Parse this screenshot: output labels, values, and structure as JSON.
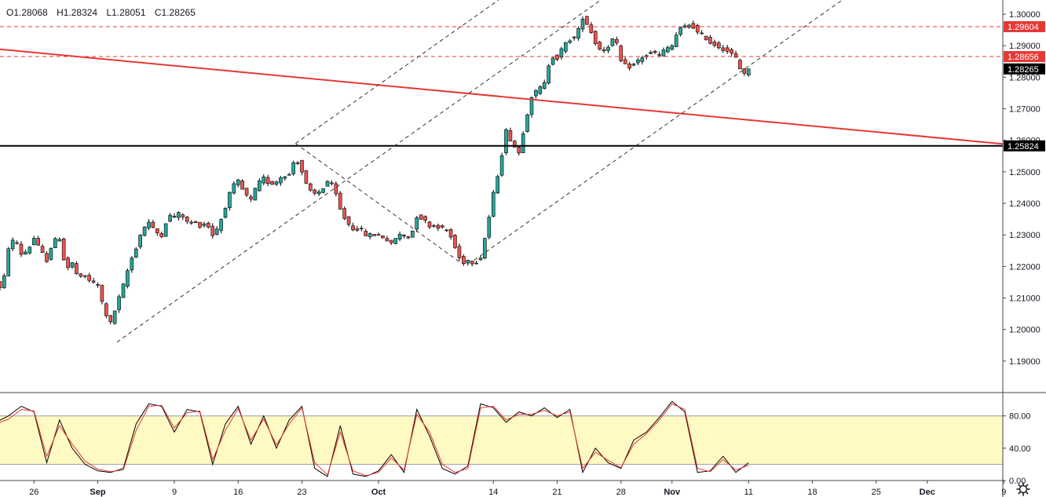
{
  "header": {
    "open": "O1.28068",
    "high": "H1.28324",
    "low": "L1.28051",
    "close": "C1.28265"
  },
  "colors": {
    "up": "#26a69a",
    "down": "#ef5350",
    "candle_border": "#000000",
    "trendline": "#e53935",
    "resistance": "#e53935",
    "support": "#000000",
    "channel": "#333333",
    "stoch_band": "#fff9c4",
    "stoch_k": "#000000",
    "stoch_d": "#e53935",
    "last_price_bg": "#000000"
  },
  "chart_data": [
    {
      "type": "candlestick",
      "title": "",
      "ylim": [
        1.18,
        1.3045
      ],
      "y_ticks": [
        "1.30000",
        "1.29000",
        "1.28000",
        "1.27000",
        "1.26000",
        "1.25000",
        "1.24000",
        "1.23000",
        "1.22000",
        "1.21000",
        "1.20000",
        "1.19000"
      ],
      "x_ticks": [
        {
          "label": "26",
          "t": -5
        },
        {
          "label": "Sep",
          "t": 0
        },
        {
          "label": "9",
          "t": 6
        },
        {
          "label": "16",
          "t": 11
        },
        {
          "label": "23",
          "t": 16
        },
        {
          "label": "Oct",
          "t": 22
        },
        {
          "label": "14",
          "t": 31
        },
        {
          "label": "21",
          "t": 36
        },
        {
          "label": "28",
          "t": 41
        },
        {
          "label": "Nov",
          "t": 45
        },
        {
          "label": "11",
          "t": 51
        },
        {
          "label": "18",
          "t": 56
        },
        {
          "label": "25",
          "t": 61
        },
        {
          "label": "Dec",
          "t": 65
        },
        {
          "label": "9",
          "t": 71
        }
      ],
      "price_labels": [
        {
          "value": 1.29604,
          "text": "1.29604",
          "style": "red"
        },
        {
          "value": 1.28656,
          "text": "1.28656",
          "style": "red"
        },
        {
          "value": 1.28265,
          "text": "1.28265",
          "style": "black"
        },
        {
          "value": 1.25824,
          "text": "1.25824",
          "style": "black"
        }
      ],
      "path": [
        [
          -8.0,
          1.215
        ],
        [
          -7.5,
          1.212
        ],
        [
          -7.0,
          1.226
        ],
        [
          -6.5,
          1.229
        ],
        [
          -6.0,
          1.224
        ],
        [
          -5.5,
          1.225
        ],
        [
          -5.0,
          1.229
        ],
        [
          -4.5,
          1.225
        ],
        [
          -4.0,
          1.222
        ],
        [
          -3.5,
          1.228
        ],
        [
          -3.0,
          1.229
        ],
        [
          -2.5,
          1.219
        ],
        [
          -2.0,
          1.221
        ],
        [
          -1.5,
          1.216
        ],
        [
          -1.0,
          1.217
        ],
        [
          -0.5,
          1.215
        ],
        [
          0.0,
          1.214
        ],
        [
          0.5,
          1.206
        ],
        [
          1.0,
          1.202
        ],
        [
          1.5,
          1.208
        ],
        [
          2.0,
          1.214
        ],
        [
          2.5,
          1.221
        ],
        [
          3.0,
          1.226
        ],
        [
          3.5,
          1.232
        ],
        [
          4.0,
          1.234
        ],
        [
          4.5,
          1.231
        ],
        [
          5.0,
          1.23
        ],
        [
          5.5,
          1.236
        ],
        [
          6.0,
          1.236
        ],
        [
          6.5,
          1.237
        ],
        [
          7.0,
          1.234
        ],
        [
          7.5,
          1.234
        ],
        [
          8.0,
          1.233
        ],
        [
          8.5,
          1.234
        ],
        [
          9.0,
          1.23
        ],
        [
          9.5,
          1.233
        ],
        [
          10.0,
          1.239
        ],
        [
          10.5,
          1.245
        ],
        [
          11.0,
          1.247
        ],
        [
          11.5,
          1.243
        ],
        [
          12.0,
          1.241
        ],
        [
          12.5,
          1.246
        ],
        [
          13.0,
          1.248
        ],
        [
          13.5,
          1.246
        ],
        [
          14.0,
          1.247
        ],
        [
          14.5,
          1.249
        ],
        [
          15.0,
          1.249
        ],
        [
          15.5,
          1.255
        ],
        [
          16.0,
          1.25
        ],
        [
          16.5,
          1.244
        ],
        [
          17.0,
          1.243
        ],
        [
          17.5,
          1.244
        ],
        [
          18.0,
          1.247
        ],
        [
          18.5,
          1.245
        ],
        [
          19.0,
          1.238
        ],
        [
          19.5,
          1.234
        ],
        [
          20.0,
          1.232
        ],
        [
          20.5,
          1.232
        ],
        [
          21.0,
          1.23
        ],
        [
          21.5,
          1.23
        ],
        [
          22.0,
          1.23
        ],
        [
          22.5,
          1.229
        ],
        [
          23.0,
          1.227
        ],
        [
          23.5,
          1.23
        ],
        [
          24.0,
          1.23
        ],
        [
          24.5,
          1.229
        ],
        [
          25.0,
          1.236
        ],
        [
          25.5,
          1.235
        ],
        [
          26.0,
          1.233
        ],
        [
          26.5,
          1.233
        ],
        [
          27.0,
          1.232
        ],
        [
          27.5,
          1.231
        ],
        [
          28.0,
          1.226
        ],
        [
          28.5,
          1.221
        ],
        [
          29.0,
          1.222
        ],
        [
          29.5,
          1.221
        ],
        [
          30.0,
          1.223
        ],
        [
          30.5,
          1.232
        ],
        [
          31.0,
          1.243
        ],
        [
          31.5,
          1.252
        ],
        [
          32.0,
          1.263
        ],
        [
          32.5,
          1.259
        ],
        [
          33.0,
          1.256
        ],
        [
          33.5,
          1.266
        ],
        [
          34.0,
          1.274
        ],
        [
          34.5,
          1.276
        ],
        [
          35.0,
          1.278
        ],
        [
          35.5,
          1.287
        ],
        [
          36.0,
          1.286
        ],
        [
          36.5,
          1.29
        ],
        [
          37.0,
          1.292
        ],
        [
          37.5,
          1.293
        ],
        [
          38.0,
          1.299
        ],
        [
          38.5,
          1.296
        ],
        [
          39.0,
          1.291
        ],
        [
          39.5,
          1.288
        ],
        [
          40.0,
          1.29
        ],
        [
          40.5,
          1.293
        ],
        [
          41.0,
          1.285
        ],
        [
          41.5,
          1.283
        ],
        [
          42.0,
          1.284
        ],
        [
          42.5,
          1.286
        ],
        [
          43.0,
          1.287
        ],
        [
          43.5,
          1.288
        ],
        [
          44.0,
          1.287
        ],
        [
          44.5,
          1.289
        ],
        [
          45.0,
          1.29
        ],
        [
          45.5,
          1.295
        ],
        [
          46.0,
          1.296
        ],
        [
          46.5,
          1.297
        ],
        [
          47.0,
          1.294
        ],
        [
          47.5,
          1.293
        ],
        [
          48.0,
          1.291
        ],
        [
          48.5,
          1.29
        ],
        [
          49.0,
          1.289
        ],
        [
          49.5,
          1.288
        ],
        [
          50.0,
          1.286
        ],
        [
          50.5,
          1.281
        ],
        [
          51.0,
          1.2826
        ]
      ],
      "support_line": 1.25824,
      "resistance_lines": [
        1.29604,
        1.28656
      ],
      "trendline": [
        [
          -8.0,
          1.289
        ],
        [
          81.0,
          1.255
        ]
      ],
      "channel_lines": [
        [
          [
            1.5,
            1.196
          ],
          [
            41.0,
            1.309
          ]
        ],
        [
          [
            29.5,
            1.222
          ],
          [
            69.0,
            1.335
          ]
        ],
        [
          [
            15.5,
            1.259
          ],
          [
            55.0,
            1.372
          ]
        ]
      ],
      "diagonal_line": [
        [
          15.5,
          1.259
        ],
        [
          28.5,
          1.221
        ]
      ]
    },
    {
      "type": "line",
      "title": "",
      "ylim": [
        0,
        105
      ],
      "y_ticks": [
        "80.00",
        "40.00",
        "0.00"
      ],
      "band": [
        20,
        80
      ],
      "series": [
        {
          "role": "k",
          "values_path": [
            [
              -8,
              72
            ],
            [
              -7,
              80
            ],
            [
              -6,
              92
            ],
            [
              -5,
              85
            ],
            [
              -4,
              22
            ],
            [
              -3,
              75
            ],
            [
              -2,
              40
            ],
            [
              -1,
              20
            ],
            [
              0,
              12
            ],
            [
              1,
              10
            ],
            [
              2,
              15
            ],
            [
              3,
              70
            ],
            [
              4,
              95
            ],
            [
              5,
              92
            ],
            [
              6,
              60
            ],
            [
              7,
              88
            ],
            [
              8,
              85
            ],
            [
              9,
              20
            ],
            [
              10,
              70
            ],
            [
              11,
              92
            ],
            [
              12,
              45
            ],
            [
              13,
              80
            ],
            [
              14,
              40
            ],
            [
              15,
              75
            ],
            [
              16,
              92
            ],
            [
              17,
              15
            ],
            [
              18,
              5
            ],
            [
              19,
              68
            ],
            [
              20,
              8
            ],
            [
              21,
              5
            ],
            [
              22,
              12
            ],
            [
              23,
              32
            ],
            [
              24,
              10
            ],
            [
              25,
              88
            ],
            [
              26,
              55
            ],
            [
              27,
              15
            ],
            [
              28,
              8
            ],
            [
              29,
              18
            ],
            [
              30,
              95
            ],
            [
              31,
              90
            ],
            [
              32,
              72
            ],
            [
              33,
              85
            ],
            [
              34,
              80
            ],
            [
              35,
              90
            ],
            [
              36,
              78
            ],
            [
              37,
              88
            ],
            [
              38,
              10
            ],
            [
              39,
              40
            ],
            [
              40,
              22
            ],
            [
              41,
              15
            ],
            [
              42,
              50
            ],
            [
              43,
              60
            ],
            [
              44,
              78
            ],
            [
              45,
              98
            ],
            [
              46,
              85
            ],
            [
              47,
              10
            ],
            [
              48,
              12
            ],
            [
              49,
              30
            ],
            [
              50,
              10
            ],
            [
              51,
              22
            ]
          ]
        },
        {
          "role": "d",
          "values_path": [
            [
              -8,
              70
            ],
            [
              -7,
              76
            ],
            [
              -6,
              88
            ],
            [
              -5,
              86
            ],
            [
              -4,
              30
            ],
            [
              -3,
              68
            ],
            [
              -2,
              45
            ],
            [
              -1,
              24
            ],
            [
              0,
              14
            ],
            [
              1,
              11
            ],
            [
              2,
              13
            ],
            [
              3,
              62
            ],
            [
              4,
              92
            ],
            [
              5,
              93
            ],
            [
              6,
              65
            ],
            [
              7,
              84
            ],
            [
              8,
              86
            ],
            [
              9,
              26
            ],
            [
              10,
              62
            ],
            [
              11,
              89
            ],
            [
              12,
              50
            ],
            [
              13,
              76
            ],
            [
              14,
              44
            ],
            [
              15,
              70
            ],
            [
              16,
              90
            ],
            [
              17,
              22
            ],
            [
              18,
              7
            ],
            [
              19,
              60
            ],
            [
              20,
              12
            ],
            [
              21,
              6
            ],
            [
              22,
              10
            ],
            [
              23,
              28
            ],
            [
              24,
              13
            ],
            [
              25,
              82
            ],
            [
              26,
              60
            ],
            [
              27,
              20
            ],
            [
              28,
              10
            ],
            [
              29,
              15
            ],
            [
              30,
              90
            ],
            [
              31,
              92
            ],
            [
              32,
              75
            ],
            [
              33,
              82
            ],
            [
              34,
              82
            ],
            [
              35,
              87
            ],
            [
              36,
              80
            ],
            [
              37,
              85
            ],
            [
              38,
              15
            ],
            [
              39,
              35
            ],
            [
              40,
              25
            ],
            [
              41,
              16
            ],
            [
              42,
              45
            ],
            [
              43,
              58
            ],
            [
              44,
              75
            ],
            [
              45,
              95
            ],
            [
              46,
              88
            ],
            [
              47,
              15
            ],
            [
              48,
              11
            ],
            [
              49,
              26
            ],
            [
              50,
              13
            ],
            [
              51,
              19
            ]
          ]
        }
      ]
    }
  ]
}
